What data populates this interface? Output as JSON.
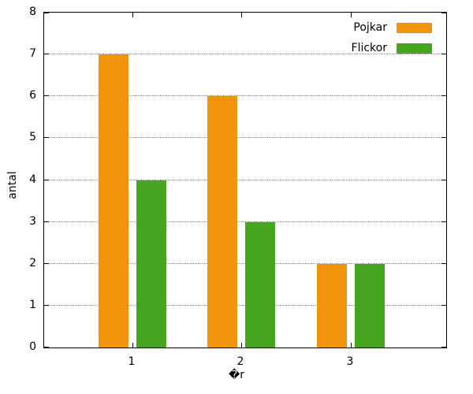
{
  "chart_data": {
    "type": "bar",
    "title": "",
    "categories": [
      "1",
      "2",
      "3"
    ],
    "series": [
      {
        "name": "Pojkar",
        "color": "#F2930D",
        "values": [
          7,
          6,
          2
        ]
      },
      {
        "name": "Flickor",
        "color": "#46A41E",
        "values": [
          4,
          3,
          2
        ]
      }
    ],
    "xlabel": "�r",
    "ylabel": "antal",
    "ylim": [
      0,
      8
    ],
    "yticks": [
      0,
      1,
      2,
      3,
      4,
      5,
      6,
      7,
      8
    ],
    "grid": "horizontal-dotted",
    "legend_position": "top-right"
  }
}
